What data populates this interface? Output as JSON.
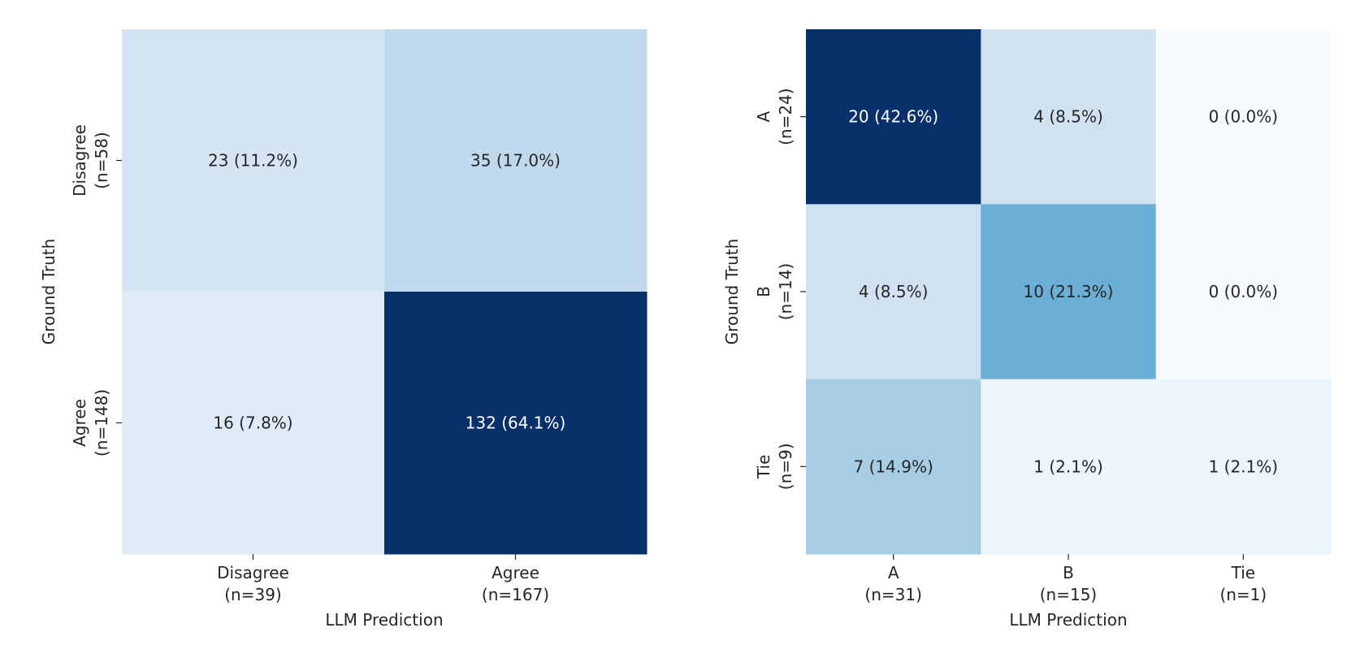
{
  "chart_data": [
    {
      "type": "heatmap",
      "xlabel": "LLM Prediction",
      "ylabel": "Ground Truth",
      "x_categories": [
        "Disagree\n(n=39)",
        "Agree\n(n=167)"
      ],
      "y_categories": [
        "Disagree\n(n=58)",
        "Agree\n(n=148)"
      ],
      "values": [
        [
          23,
          35
        ],
        [
          16,
          132
        ]
      ],
      "annotations": [
        [
          "23 (11.2%)",
          "35 (17.0%)"
        ],
        [
          "16 (7.8%)",
          "132 (64.1%)"
        ]
      ],
      "colormap": "Blues",
      "vmin": 0,
      "vmax": 132,
      "colorbar": false,
      "grid": false
    },
    {
      "type": "heatmap",
      "xlabel": "LLM Prediction",
      "ylabel": "Ground Truth",
      "x_categories": [
        "A\n(n=31)",
        "B\n(n=15)",
        "Tie\n(n=1)"
      ],
      "y_categories": [
        "A\n(n=24)",
        "B\n(n=14)",
        "Tie\n(n=9)"
      ],
      "values": [
        [
          20,
          4,
          0
        ],
        [
          4,
          10,
          0
        ],
        [
          7,
          1,
          1
        ]
      ],
      "annotations": [
        [
          "20 (42.6%)",
          "4 (8.5%)",
          "0 (0.0%)"
        ],
        [
          "4 (8.5%)",
          "10 (21.3%)",
          "0 (0.0%)"
        ],
        [
          "7 (14.9%)",
          "1 (2.1%)",
          "1 (2.1%)"
        ]
      ],
      "colormap": "Blues",
      "vmin": 0,
      "vmax": 20,
      "colorbar": false,
      "grid": false
    }
  ]
}
